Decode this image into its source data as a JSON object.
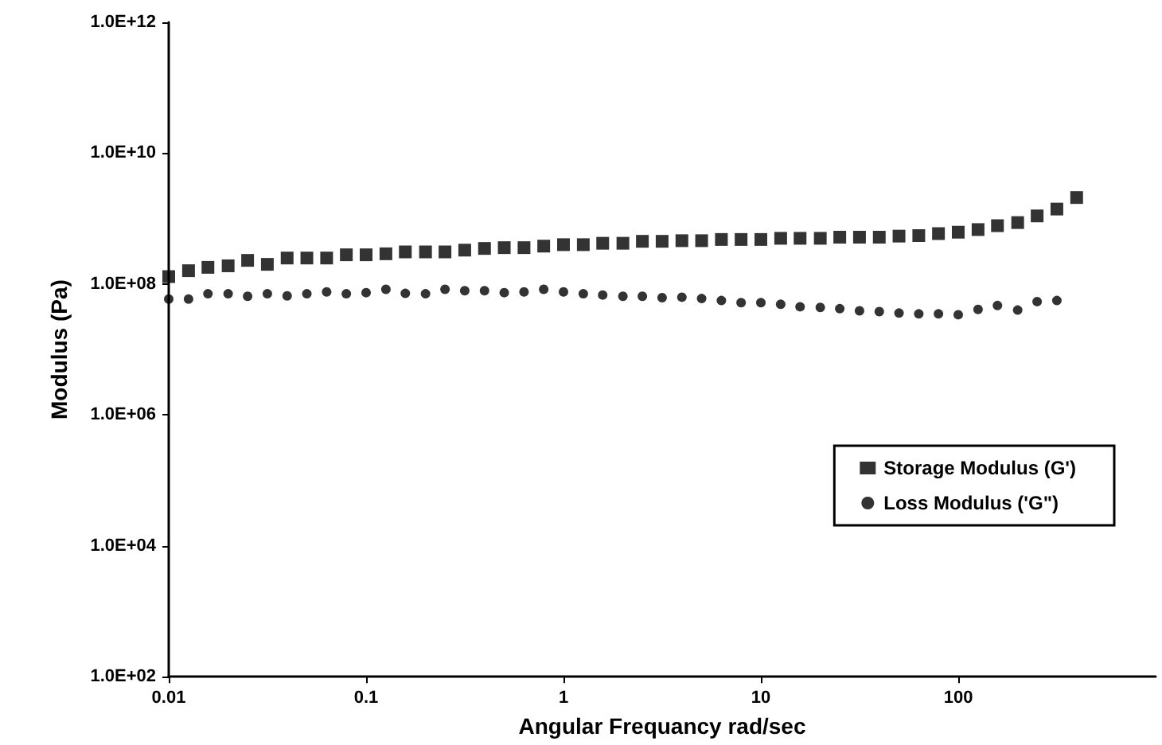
{
  "chart_data": {
    "type": "scatter",
    "xlabel": "Angular Frequancy rad/sec",
    "ylabel": "Modulus (Pa)",
    "log": "xy",
    "grid": false,
    "legend": "right",
    "line_style": "none",
    "xlim": [
      0.01,
      1000
    ],
    "xticks": [
      0.01,
      0.1,
      1,
      10,
      100
    ],
    "ylim": [
      100,
      1000000000000
    ],
    "yticks": [
      {
        "value": 100,
        "label": "1.0E+02"
      },
      {
        "value": 10000,
        "label": "1.0E+04"
      },
      {
        "value": 1000000,
        "label": "1.0E+06"
      },
      {
        "value": 100000000,
        "label": "1.0E+08"
      },
      {
        "value": 10000000000,
        "label": "1.0E+10"
      },
      {
        "value": 1000000000000,
        "label": "1.0E+12"
      }
    ],
    "series": [
      {
        "name": "Storage Modulus (G')",
        "color": "#000000",
        "marker": "square",
        "x": [
          0.01,
          0.0126,
          0.0158,
          0.02,
          0.0251,
          0.0316,
          0.0398,
          0.0501,
          0.0631,
          0.0794,
          0.1,
          0.126,
          0.158,
          0.2,
          0.251,
          0.316,
          0.398,
          0.501,
          0.631,
          0.794,
          1,
          1.26,
          1.58,
          2,
          2.51,
          3.16,
          3.98,
          5.01,
          6.31,
          7.94,
          10,
          12.6,
          15.8,
          20,
          25.1,
          31.6,
          39.8,
          50.1,
          63.1,
          79.4,
          100,
          126,
          158,
          200,
          251,
          316,
          398
        ],
        "values": [
          130000000,
          160000000,
          180000000,
          190000000,
          230000000,
          200000000,
          250000000,
          250000000,
          250000000,
          280000000,
          280000000,
          290000000,
          310000000,
          310000000,
          310000000,
          330000000,
          350000000,
          360000000,
          360000000,
          380000000,
          400000000,
          400000000,
          420000000,
          420000000,
          450000000,
          450000000,
          460000000,
          460000000,
          480000000,
          480000000,
          480000000,
          500000000,
          500000000,
          500000000,
          520000000,
          520000000,
          520000000,
          540000000,
          550000000,
          590000000,
          620000000,
          680000000,
          780000000,
          870000000,
          1100000000,
          1400000000,
          2100000000
        ]
      },
      {
        "name": "Loss Modulus ('G\")",
        "color": "#000000",
        "marker": "circle",
        "x": [
          0.01,
          0.0126,
          0.0158,
          0.02,
          0.0251,
          0.0316,
          0.0398,
          0.0501,
          0.0631,
          0.0794,
          0.1,
          0.126,
          0.158,
          0.2,
          0.251,
          0.316,
          0.398,
          0.501,
          0.631,
          0.794,
          1,
          1.26,
          1.58,
          2,
          2.51,
          3.16,
          3.98,
          5.01,
          6.31,
          7.94,
          10,
          12.6,
          15.8,
          20,
          25.1,
          31.6,
          39.8,
          50.1,
          63.1,
          79.4,
          100,
          126,
          158,
          200,
          251,
          316
        ],
        "values": [
          59000000,
          59000000,
          71000000,
          71000000,
          65000000,
          71000000,
          66000000,
          71000000,
          76000000,
          71000000,
          74000000,
          83000000,
          72000000,
          71000000,
          83000000,
          79000000,
          79000000,
          74000000,
          76000000,
          83000000,
          76000000,
          71000000,
          68000000,
          65000000,
          65000000,
          62000000,
          63000000,
          60000000,
          56000000,
          52000000,
          52000000,
          49000000,
          45000000,
          44000000,
          42000000,
          39000000,
          38000000,
          36000000,
          35000000,
          35000000,
          34000000,
          41000000,
          47000000,
          40000000,
          54000000,
          56000000
        ]
      }
    ]
  }
}
